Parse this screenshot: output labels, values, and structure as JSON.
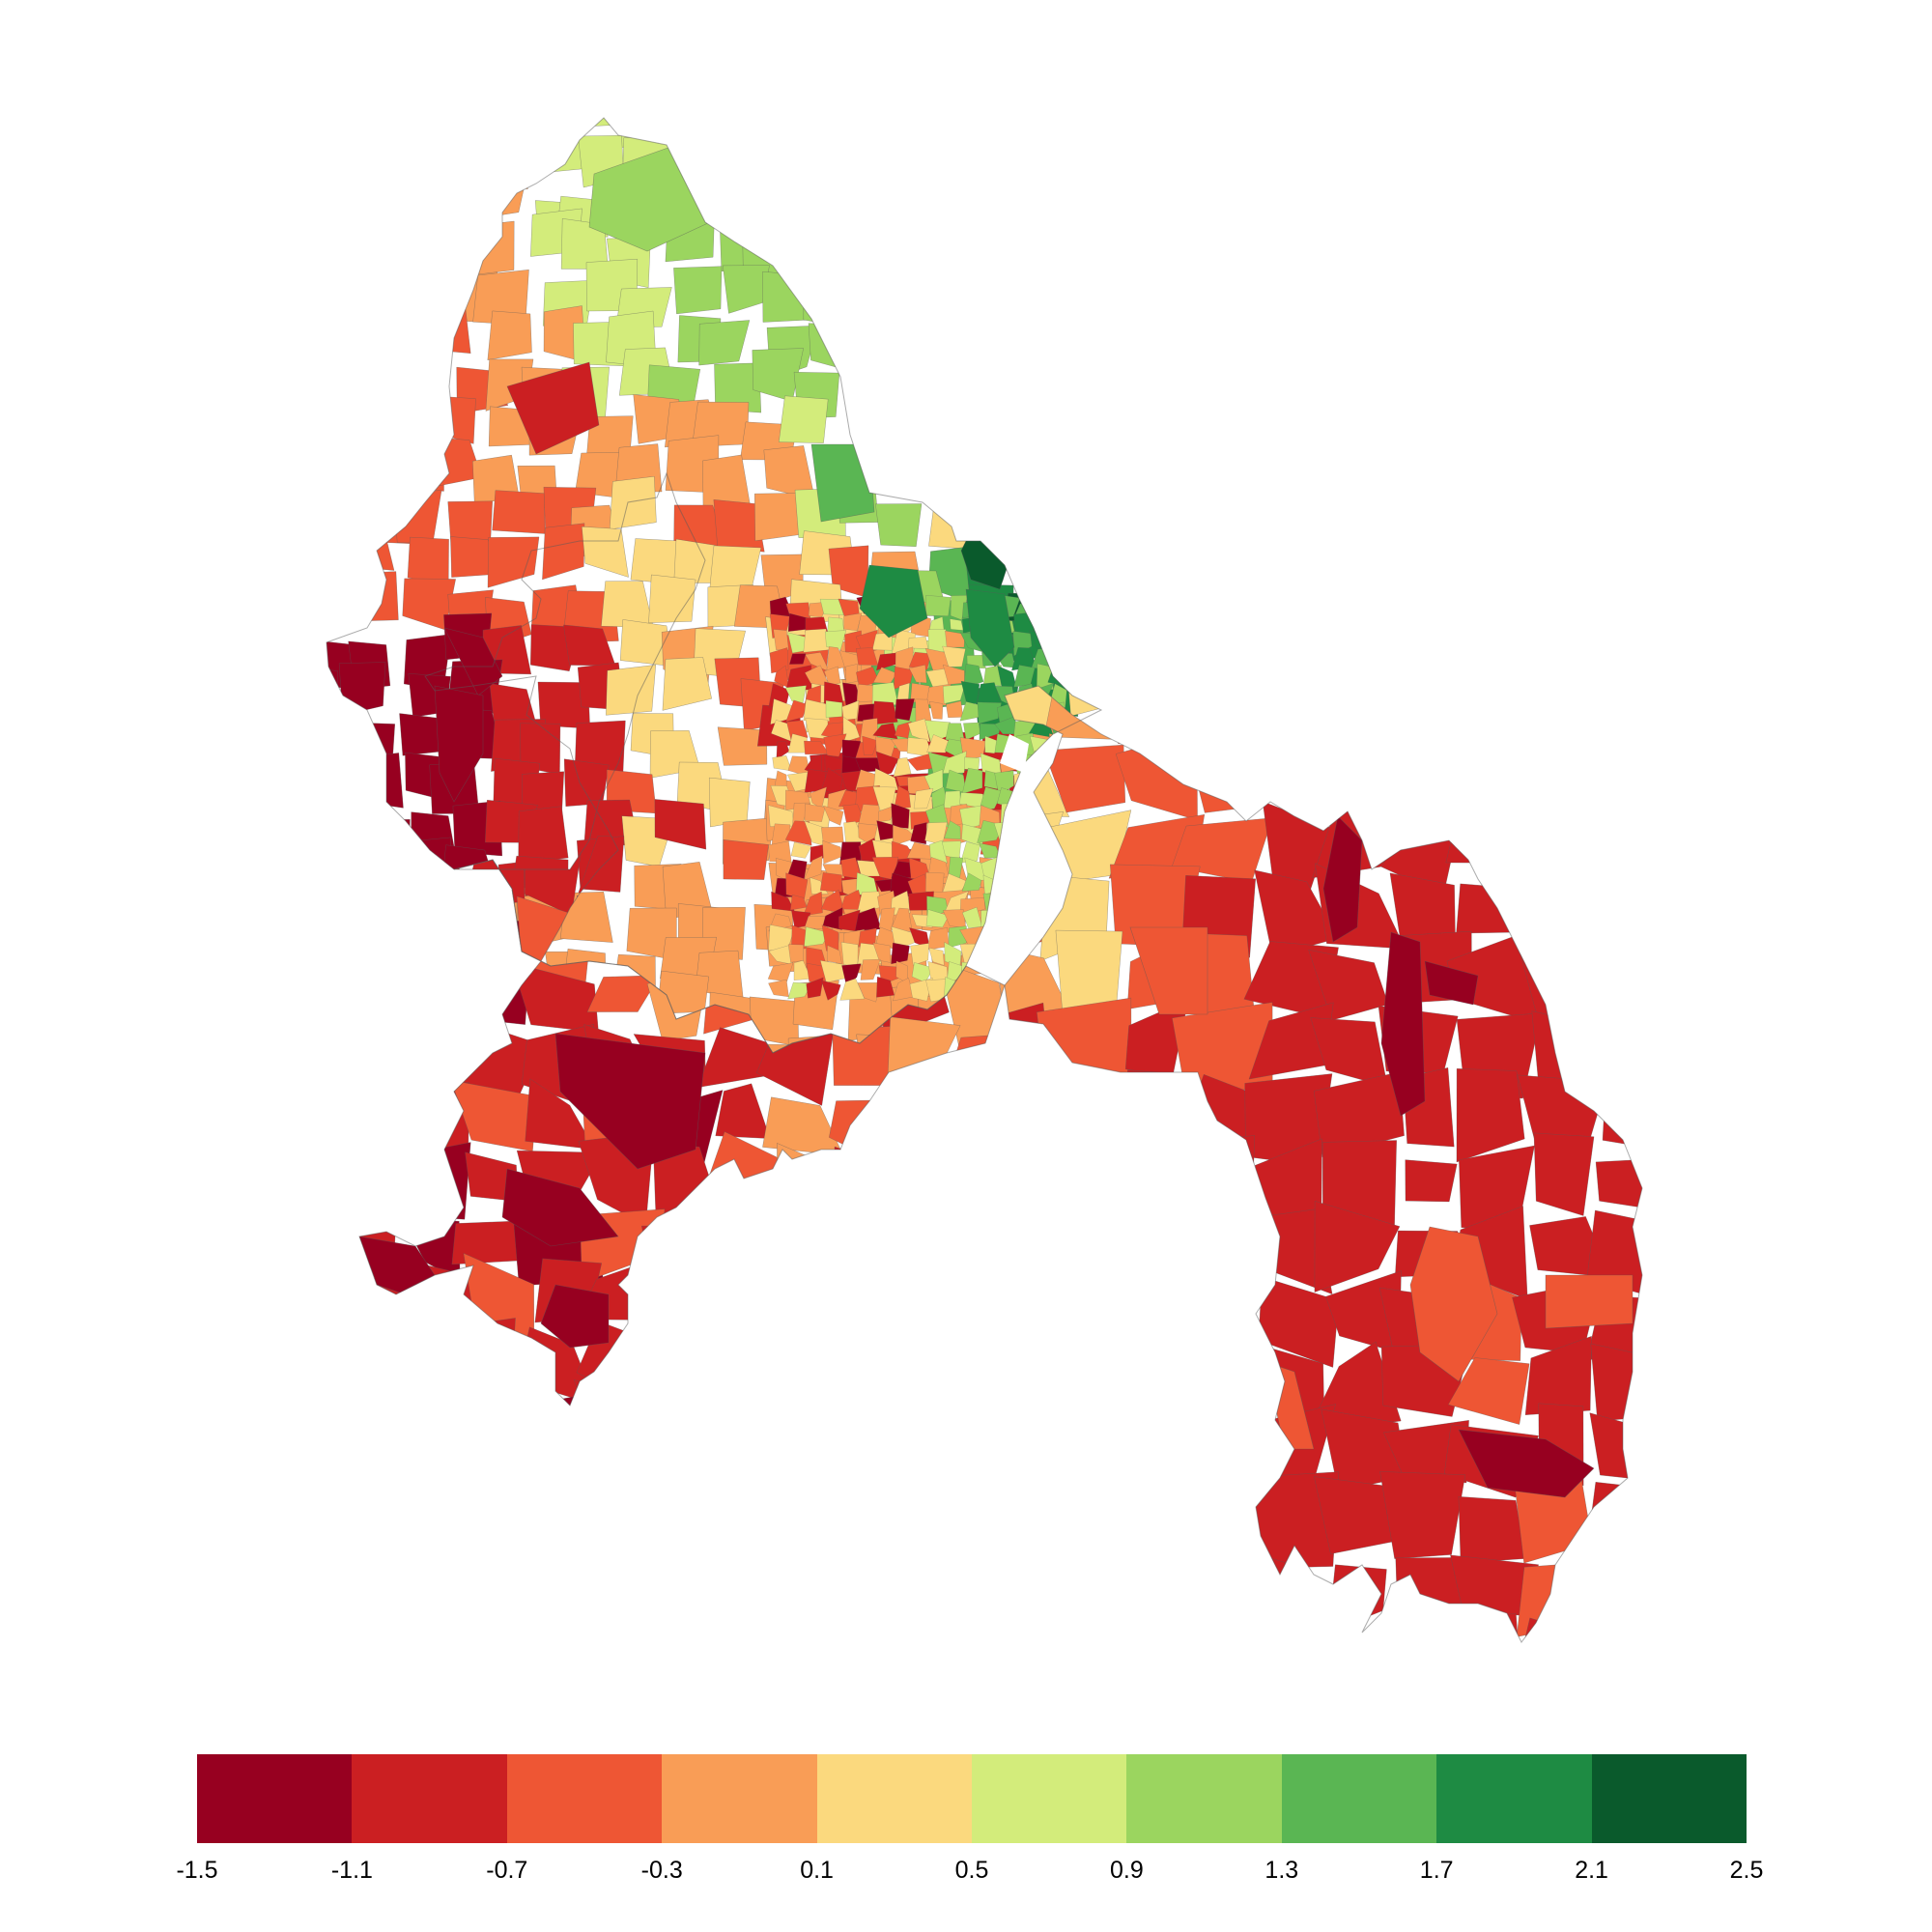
{
  "map": {
    "type": "choropleth",
    "palette": [
      "#970020",
      "#cb1f22",
      "#ee5634",
      "#f99d56",
      "#fbd97e",
      "#d3ec7b",
      "#9bd55f",
      "#5ab653",
      "#1e8b43",
      "#0a5a2c"
    ],
    "no_data_color": "#ffffff",
    "boundary_color": "#5a5a5a"
  },
  "legend": {
    "ticks": [
      "-1.5",
      "-1.1",
      "-0.7",
      "-0.3",
      "0.1",
      "0.5",
      "0.9",
      "1.3",
      "1.7",
      "2.1",
      "2.5"
    ],
    "placement": "bottom"
  }
}
